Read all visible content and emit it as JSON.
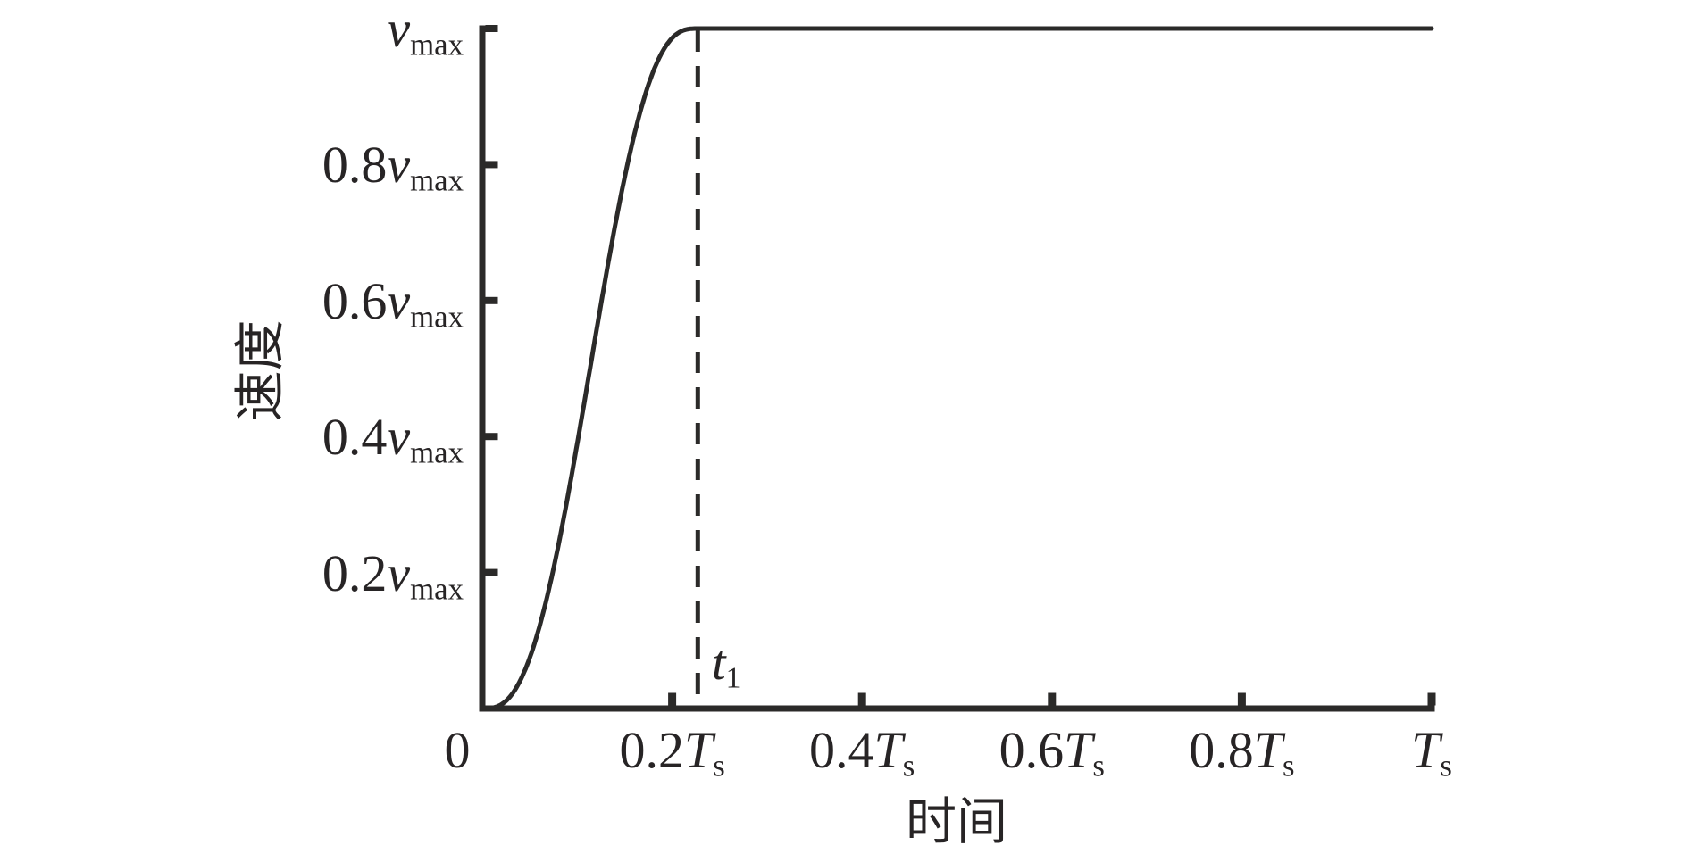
{
  "figure": {
    "background": "#ffffff",
    "line_color": "#2b2a29",
    "text_color": "#272425"
  },
  "chart_data": {
    "type": "line",
    "title": "",
    "xlabel": "时间",
    "ylabel": "速度",
    "xlim": [
      0,
      1
    ],
    "ylim": [
      0,
      1
    ],
    "grid": false,
    "legend": null,
    "x_axis_unit": {
      "var": "T",
      "sub": "s"
    },
    "y_axis_unit": {
      "var": "v",
      "sub": "max"
    },
    "x_ticks": [
      {
        "value": 0,
        "prefix": "0",
        "var": "",
        "sub": ""
      },
      {
        "value": 0.2,
        "prefix": "0.2",
        "var": "T",
        "sub": "s"
      },
      {
        "value": 0.4,
        "prefix": "0.4",
        "var": "T",
        "sub": "s"
      },
      {
        "value": 0.6,
        "prefix": "0.6",
        "var": "T",
        "sub": "s"
      },
      {
        "value": 0.8,
        "prefix": "0.8",
        "var": "T",
        "sub": "s"
      },
      {
        "value": 1.0,
        "prefix": "",
        "var": "T",
        "sub": "s"
      }
    ],
    "y_ticks": [
      {
        "value": 0.2,
        "prefix": "0.2",
        "var": "v",
        "sub": "max"
      },
      {
        "value": 0.4,
        "prefix": "0.4",
        "var": "v",
        "sub": "max"
      },
      {
        "value": 0.6,
        "prefix": "0.6",
        "var": "v",
        "sub": "max"
      },
      {
        "value": 0.8,
        "prefix": "0.8",
        "var": "v",
        "sub": "max"
      },
      {
        "value": 1.0,
        "prefix": "",
        "var": "v",
        "sub": "max"
      }
    ],
    "annotation": {
      "style": "dashed-vertical-line",
      "x_value": 0.227,
      "label_var": "t",
      "label_sub": "1"
    },
    "series": [
      {
        "name": "velocity-s-curve",
        "model": "quintic-smoothstep-then-constant",
        "t1": 0.227,
        "v_plateau": 1.0,
        "points": [
          [
            0,
            0
          ],
          [
            0.02,
            0.006
          ],
          [
            0.04,
            0.041
          ],
          [
            0.06,
            0.119
          ],
          [
            0.08,
            0.239
          ],
          [
            0.1,
            0.389
          ],
          [
            0.12,
            0.554
          ],
          [
            0.14,
            0.711
          ],
          [
            0.16,
            0.843
          ],
          [
            0.18,
            0.937
          ],
          [
            0.2,
            0.986
          ],
          [
            0.22,
            0.9998
          ],
          [
            0.227,
            1.0
          ],
          [
            0.4,
            1.0
          ],
          [
            0.6,
            1.0
          ],
          [
            0.8,
            1.0
          ],
          [
            1.0,
            1.0
          ]
        ]
      }
    ]
  }
}
